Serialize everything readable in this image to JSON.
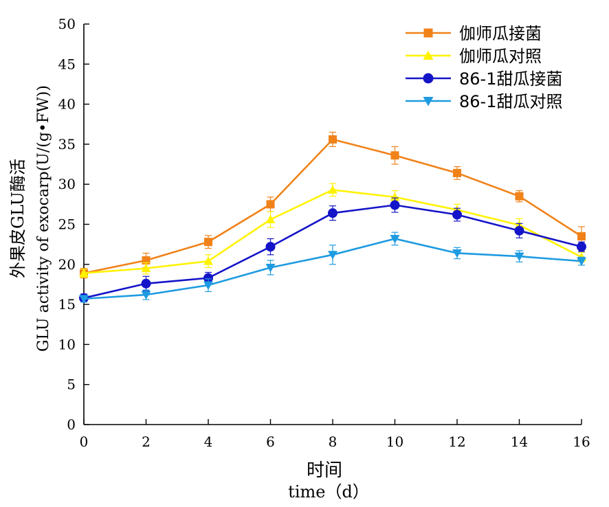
{
  "chart_data": {
    "type": "line",
    "xlabel_cn": "时间",
    "xlabel_en": "time（d）",
    "ylabel_cn": "外果皮GLU酶活",
    "ylabel_en": "GLU activity of exocarp(U/(g•FW))",
    "x": [
      0,
      2,
      4,
      6,
      8,
      10,
      12,
      14,
      16
    ],
    "xlim": [
      0,
      16
    ],
    "ylim": [
      0,
      50
    ],
    "xticks": [
      "0",
      "2",
      "4",
      "6",
      "8",
      "10",
      "12",
      "14",
      "16"
    ],
    "yticks": [
      "0",
      "5",
      "10",
      "15",
      "20",
      "25",
      "30",
      "35",
      "40",
      "45",
      "50"
    ],
    "grid": false,
    "legend_position": "top-right",
    "series": [
      {
        "name": "伽师瓜接菌",
        "color": "#F08219",
        "marker": "square",
        "values": [
          18.9,
          20.5,
          22.8,
          27.5,
          35.6,
          33.6,
          31.4,
          28.5,
          23.5
        ],
        "errors": [
          0.6,
          0.9,
          0.8,
          0.9,
          0.9,
          1.1,
          0.8,
          0.7,
          1.2
        ]
      },
      {
        "name": "伽师瓜对照",
        "color": "#FFF200",
        "marker": "triangle-up",
        "values": [
          18.9,
          19.5,
          20.4,
          25.6,
          29.3,
          28.4,
          26.8,
          24.9,
          20.9
        ],
        "errors": [
          0.5,
          0.7,
          0.8,
          1.0,
          0.8,
          0.8,
          0.7,
          0.8,
          0.6
        ]
      },
      {
        "name": "86-1甜瓜接菌",
        "color": "#1414C8",
        "marker": "circle",
        "values": [
          15.8,
          17.6,
          18.3,
          22.2,
          26.4,
          27.4,
          26.2,
          24.2,
          22.2
        ],
        "errors": [
          0.5,
          0.9,
          0.7,
          1.0,
          0.9,
          0.9,
          0.8,
          0.9,
          0.6
        ]
      },
      {
        "name": "86-1甜瓜对照",
        "color": "#1E9BE1",
        "marker": "triangle-down",
        "values": [
          15.7,
          16.2,
          17.4,
          19.6,
          21.2,
          23.2,
          21.4,
          21.0,
          20.4
        ],
        "errors": [
          0.4,
          0.6,
          0.8,
          0.9,
          1.2,
          0.8,
          0.7,
          0.7,
          0.5
        ]
      }
    ]
  }
}
